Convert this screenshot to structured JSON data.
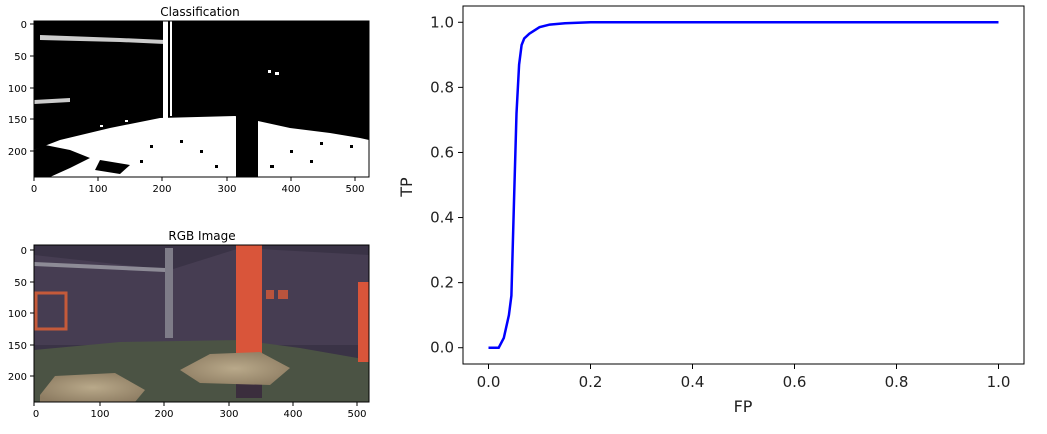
{
  "panels": {
    "classification": {
      "title": "Classification",
      "x_ticks": [
        "0",
        "100",
        "200",
        "300",
        "400",
        "500"
      ],
      "y_ticks": [
        "0",
        "50",
        "100",
        "150",
        "200"
      ]
    },
    "rgb": {
      "title": "RGB Image",
      "x_ticks": [
        "0",
        "100",
        "200",
        "300",
        "400",
        "500"
      ],
      "y_ticks": [
        "0",
        "50",
        "100",
        "150",
        "200"
      ]
    }
  },
  "chart_data": {
    "type": "line",
    "title": "",
    "xlabel": "FP",
    "ylabel": "TP",
    "xlim": [
      -0.05,
      1.05
    ],
    "ylim": [
      -0.05,
      1.05
    ],
    "x_ticks": [
      0.0,
      0.2,
      0.4,
      0.6,
      0.8,
      1.0
    ],
    "y_ticks": [
      0.0,
      0.2,
      0.4,
      0.6,
      0.8,
      1.0
    ],
    "x_tick_labels": [
      "0.0",
      "0.2",
      "0.4",
      "0.6",
      "0.8",
      "1.0"
    ],
    "y_tick_labels": [
      "0.0",
      "0.2",
      "0.4",
      "0.6",
      "0.8",
      "1.0"
    ],
    "grid": false,
    "series": [
      {
        "color": "#0000ff",
        "x": [
          0.0,
          0.02,
          0.03,
          0.04,
          0.045,
          0.05,
          0.055,
          0.06,
          0.065,
          0.07,
          0.08,
          0.09,
          0.1,
          0.12,
          0.15,
          0.2,
          0.3,
          0.5,
          0.8,
          1.0
        ],
        "y": [
          0.0,
          0.0,
          0.03,
          0.1,
          0.16,
          0.45,
          0.72,
          0.87,
          0.93,
          0.95,
          0.965,
          0.975,
          0.985,
          0.993,
          0.997,
          1.0,
          1.0,
          1.0,
          1.0,
          1.0
        ]
      }
    ]
  }
}
